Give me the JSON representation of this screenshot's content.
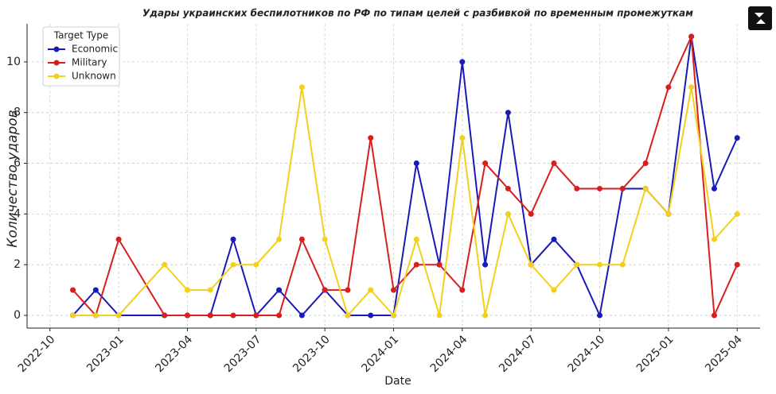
{
  "chart_data": {
    "type": "line",
    "title": "Удары украинских беспилотников по РФ по типам целей с разбивкой по временным промежуткам",
    "x_label": "Date",
    "y_label": "Количество ударов",
    "legend_title": "Target Type",
    "legend_position": "upper left",
    "grid": true,
    "x": [
      "2022-11",
      "2022-12",
      "2023-01",
      "2023-03",
      "2023-04",
      "2023-05",
      "2023-06",
      "2023-07",
      "2023-08",
      "2023-09",
      "2023-10",
      "2023-11",
      "2023-12",
      "2024-01",
      "2024-02",
      "2024-03",
      "2024-04",
      "2024-05",
      "2024-06",
      "2024-07",
      "2024-08",
      "2024-09",
      "2024-10",
      "2024-11",
      "2024-12",
      "2025-01",
      "2025-02",
      "2025-03",
      "2025-04"
    ],
    "series": [
      {
        "name": "Economic",
        "color": "#1a1ab8",
        "values": [
          0,
          1,
          0,
          0,
          0,
          0,
          3,
          0,
          1,
          0,
          1,
          0,
          0,
          0,
          6,
          2,
          10,
          2,
          8,
          2,
          3,
          2,
          0,
          5,
          5,
          4,
          11,
          5,
          7
        ]
      },
      {
        "name": "Military",
        "color": "#d91e1e",
        "values": [
          1,
          0,
          3,
          0,
          0,
          0,
          0,
          0,
          0,
          3,
          1,
          1,
          7,
          1,
          2,
          2,
          1,
          6,
          5,
          4,
          6,
          5,
          5,
          5,
          6,
          9,
          11,
          0,
          2
        ]
      },
      {
        "name": "Unknown",
        "color": "#f2d01c",
        "values": [
          0,
          0,
          0,
          2,
          1,
          1,
          2,
          2,
          3,
          9,
          3,
          0,
          1,
          0,
          3,
          0,
          7,
          0,
          4,
          2,
          1,
          2,
          2,
          2,
          5,
          4,
          9,
          3,
          4
        ]
      }
    ],
    "xlim": [
      "2022-09",
      "2025-05"
    ],
    "xticks": [
      "2022-10",
      "2023-01",
      "2023-04",
      "2023-07",
      "2023-10",
      "2024-01",
      "2024-04",
      "2024-07",
      "2024-10",
      "2025-01",
      "2025-04"
    ],
    "ylim": [
      -0.5,
      11.5
    ],
    "yticks": [
      0,
      2,
      4,
      6,
      8,
      10
    ]
  }
}
